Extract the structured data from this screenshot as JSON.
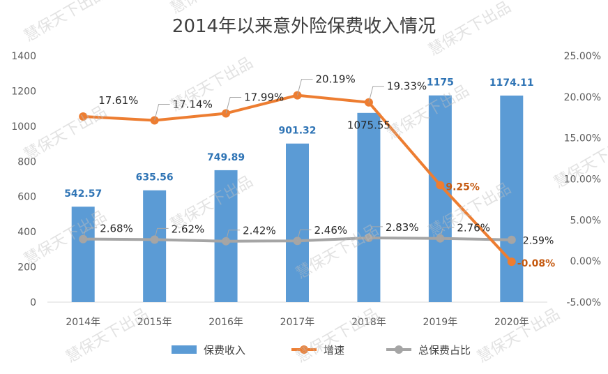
{
  "chart_data": {
    "type": "bar",
    "title": "2014年以来意外险保费收入情况",
    "categories": [
      "2014年",
      "2015年",
      "2016年",
      "2017年",
      "2018年",
      "2019年",
      "2020年"
    ],
    "y_left": {
      "ticks": [
        "0",
        "200",
        "400",
        "600",
        "800",
        "1000",
        "1200",
        "1400"
      ],
      "ylim": [
        0,
        1400
      ]
    },
    "y_right": {
      "ticks": [
        "-5.00%",
        "0.00%",
        "5.00%",
        "10.00%",
        "15.00%",
        "20.00%",
        "25.00%"
      ],
      "ylim": [
        -5,
        25
      ],
      "unit": "%"
    },
    "series": [
      {
        "name": "保费收入",
        "type": "bar",
        "axis": "left",
        "color": "#5b9bd5",
        "values": [
          542.57,
          635.56,
          749.89,
          901.32,
          1075.55,
          1175,
          1174.11
        ],
        "labels": [
          "542.57",
          "635.56",
          "749.89",
          "901.32",
          "1075.55",
          "1175",
          "1174.11"
        ]
      },
      {
        "name": "增速",
        "type": "line",
        "axis": "right",
        "color": "#ed7d31",
        "values": [
          17.61,
          17.14,
          17.99,
          20.19,
          19.33,
          9.25,
          -0.08
        ],
        "labels": [
          "17.61%",
          "17.14%",
          "17.99%",
          "20.19%",
          "19.33%",
          "9.25%",
          "-0.08%"
        ]
      },
      {
        "name": "总保费占比",
        "type": "line",
        "axis": "right",
        "color": "#a5a5a5",
        "values": [
          2.68,
          2.62,
          2.42,
          2.46,
          2.83,
          2.76,
          2.59
        ],
        "labels": [
          "2.68%",
          "2.62%",
          "2.42%",
          "2.46%",
          "2.83%",
          "2.76%",
          "2.59%"
        ]
      }
    ],
    "legend": {
      "position": "bottom"
    },
    "grid": false,
    "watermark": "慧保天下出品"
  }
}
